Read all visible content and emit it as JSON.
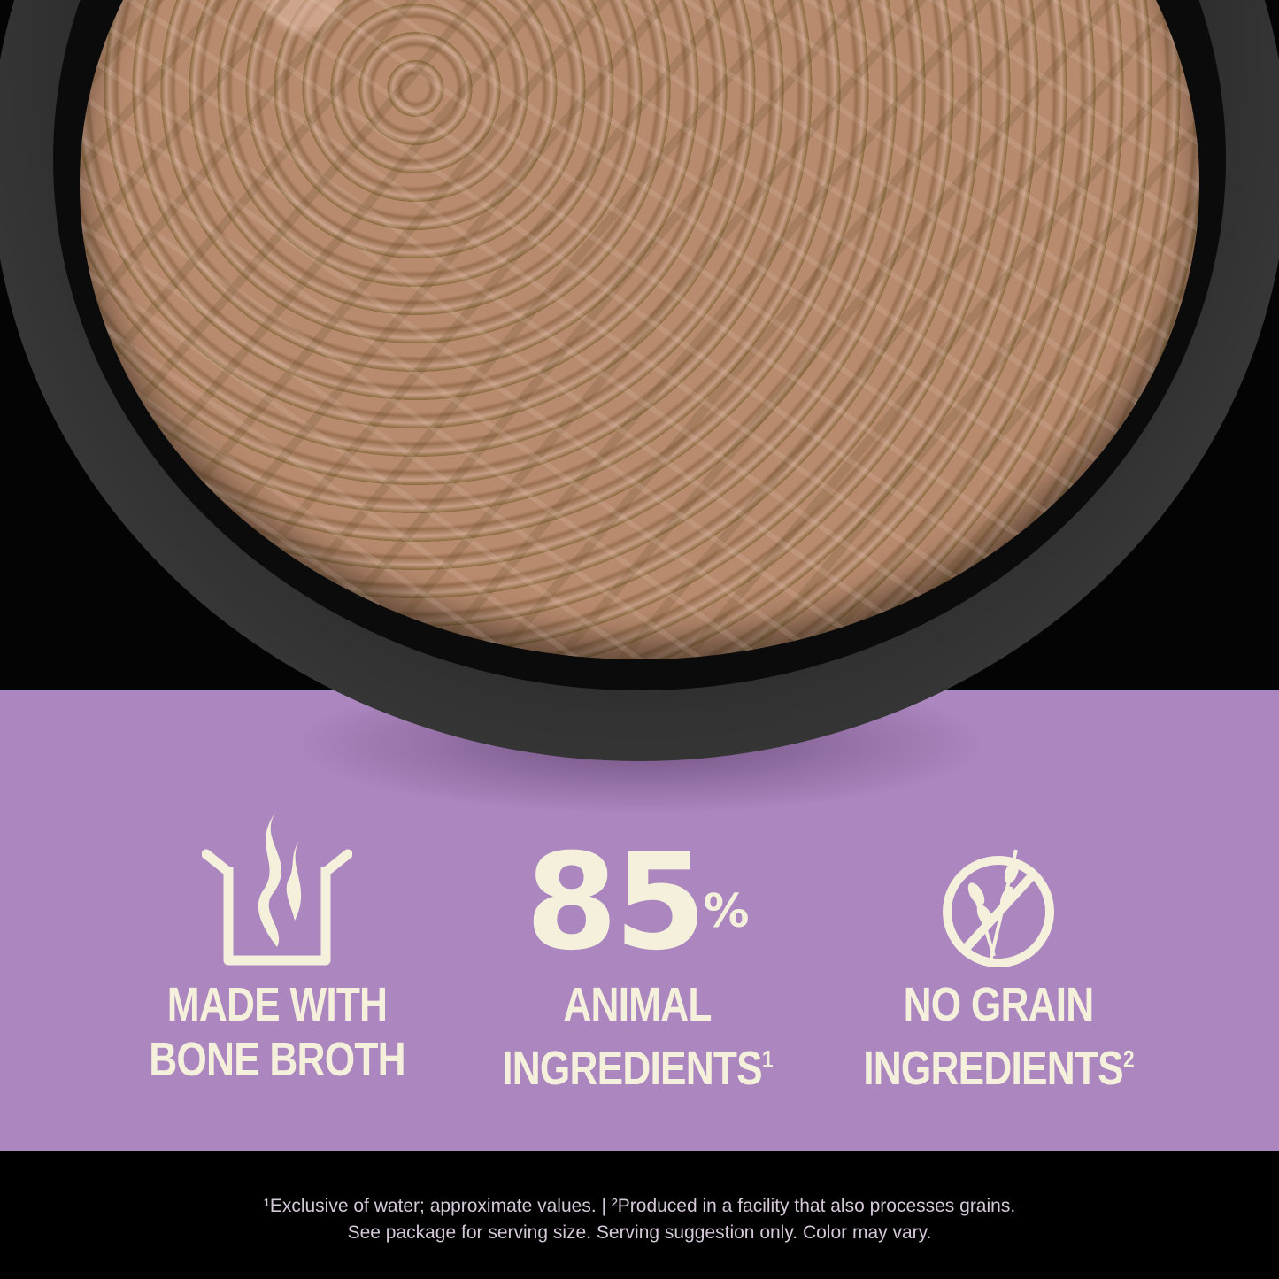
{
  "features": [
    {
      "icon": "pot-steam-icon",
      "line1": "MADE WITH",
      "line2": "BONE BROTH",
      "sup": ""
    },
    {
      "stat": "85",
      "stat_unit": "%",
      "line1": "ANIMAL",
      "line2": "INGREDIENTS",
      "sup": "1"
    },
    {
      "icon": "no-grain-icon",
      "line1": "NO GRAIN",
      "line2": "INGREDIENTS",
      "sup": "2"
    }
  ],
  "footnotes": {
    "line1": "¹Exclusive of water; approximate values. | ²Produced in a facility that also processes grains.",
    "line2": "See package for serving size. Serving suggestion only. Color may vary."
  },
  "colors": {
    "band": "#ab86bf",
    "text": "#f4f0dc",
    "background": "#000000"
  }
}
